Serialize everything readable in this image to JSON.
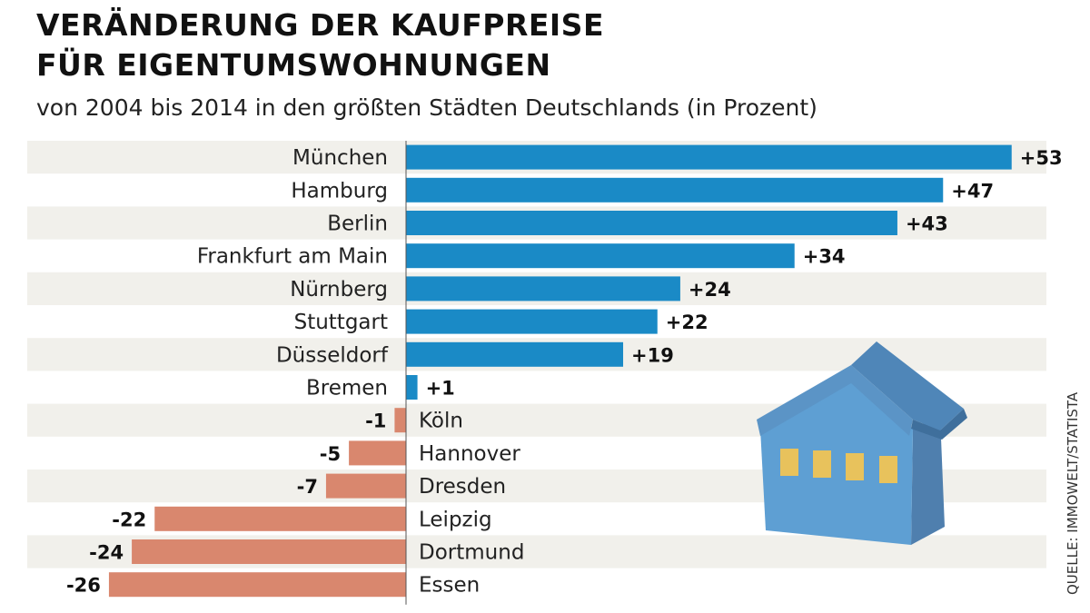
{
  "header": {
    "title_line1": "VERÄNDERUNG DER KAUFPREISE",
    "title_line2": "FÜR EIGENTUMSWOHNUNGEN",
    "subtitle": "von 2004 bis 2014 in den größten Städten Deutschlands (in Prozent)"
  },
  "source": "QUELLE: IMMOWELT/STATISTA",
  "colors": {
    "positive": "#1a8ac6",
    "negative": "#d9876e",
    "stripe": "#f1f0eb",
    "axis": "#555555",
    "house_wall": "#5e9fd3",
    "house_roof": "#4f86b8",
    "house_window": "#e8c25c"
  },
  "decoration": {
    "icon": "house-icon"
  },
  "chart_data": {
    "type": "bar",
    "orientation": "horizontal",
    "categories": [
      "München",
      "Hamburg",
      "Berlin",
      "Frankfurt am Main",
      "Nürnberg",
      "Stuttgart",
      "Düsseldorf",
      "Bremen",
      "Köln",
      "Hannover",
      "Dresden",
      "Leipzig",
      "Dortmund",
      "Essen"
    ],
    "values": [
      53,
      47,
      43,
      34,
      24,
      22,
      19,
      1,
      -1,
      -5,
      -7,
      -22,
      -24,
      -26
    ],
    "value_labels": [
      "+53",
      "+47",
      "+43",
      "+34",
      "+24",
      "+22",
      "+19",
      "+1",
      "-1",
      "-5",
      "-7",
      "-22",
      "-24",
      "-26"
    ],
    "title": "VERÄNDERUNG DER KAUFPREISE FÜR EIGENTUMSWOHNUNGEN",
    "subtitle": "von 2004 bis 2014 in den größten Städten Deutschlands (in Prozent)",
    "xlim": [
      -26,
      53
    ],
    "grid": false,
    "legend": "none"
  }
}
